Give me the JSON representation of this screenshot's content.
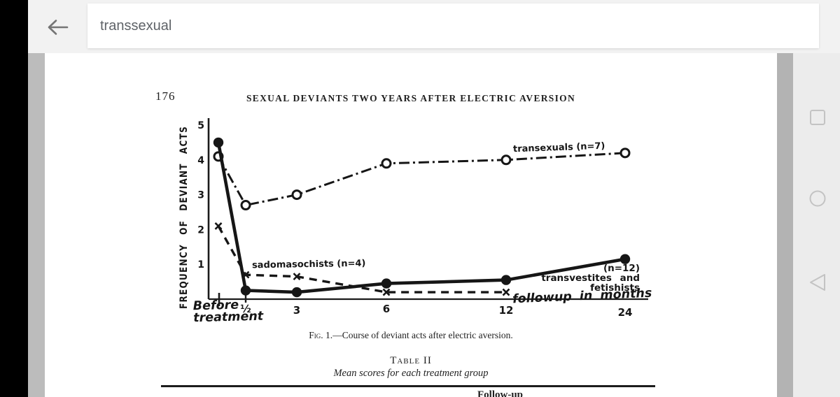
{
  "browser": {
    "search": {
      "value": "transsexual"
    }
  },
  "nav_rail": {
    "icons": [
      "recents",
      "home",
      "back"
    ]
  },
  "page": {
    "page_number": "176",
    "running_head": "SEXUAL DEVIANTS TWO YEARS AFTER ELECTRIC AVERSION",
    "figure": {
      "caption_label": "Fig. 1.",
      "caption_text": "—Course of deviant acts after electric aversion."
    },
    "table": {
      "title": "Table II",
      "subtitle": "Mean scores for each treatment group",
      "partial_column_header": "Follow-up"
    }
  },
  "chart_data": {
    "type": "line",
    "title": "",
    "ylabel": "FREQUENCY OF DEVIANT ACTS",
    "xlabel": "followup in months",
    "ylim": [
      0,
      5
    ],
    "y_ticks": [
      1,
      2,
      3,
      4,
      5
    ],
    "grid": false,
    "categories": [
      "before",
      "0.5",
      "3",
      "6",
      "12",
      "24"
    ],
    "x_tick_labels": {
      "before": "Before treatment",
      "0.5": "½",
      "3": "3",
      "6": "6",
      "12": "12",
      "24": "24"
    },
    "series": [
      {
        "name": "transexuals (n=7)",
        "line": "dashdot",
        "marker": "open-circle",
        "values": [
          4.1,
          2.7,
          3.0,
          3.9,
          4.0,
          4.2
        ]
      },
      {
        "name": "sadomasochists (n=4)",
        "line": "dashed",
        "marker": "x",
        "values": [
          2.1,
          0.7,
          0.65,
          0.2,
          0.2,
          null
        ]
      },
      {
        "name": "transvestites and fetishists (n=12)",
        "line": "solid",
        "marker": "filled-circle",
        "values": [
          4.5,
          0.25,
          0.2,
          0.45,
          0.55,
          1.15
        ]
      }
    ],
    "annotations": {
      "transsexuals_label": "transexuals (n=7)",
      "sadomasochists_label": "sadomasochists (n=4)",
      "transvestites_label_line1": "(n=12)",
      "transvestites_label_line2": "transvestites and fetishists",
      "followup_label": "followup in months",
      "before_label_line1": "Before",
      "before_label_line2": "treatment"
    }
  }
}
